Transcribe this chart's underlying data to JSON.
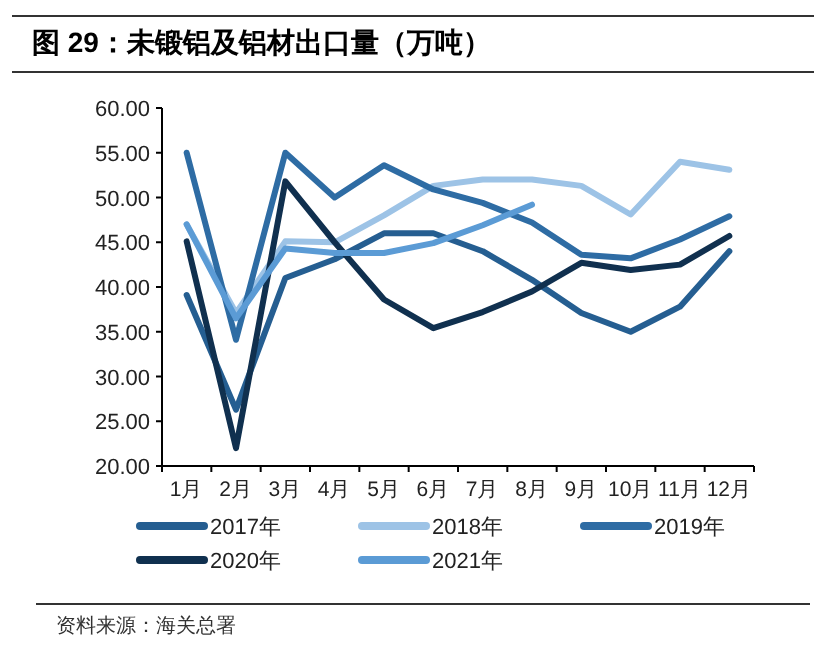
{
  "chart_data": {
    "type": "line",
    "title": "图 29：未锻铝及铝材出口量（万吨）",
    "categories": [
      "1月",
      "2月",
      "3月",
      "4月",
      "5月",
      "6月",
      "7月",
      "8月",
      "9月",
      "10月",
      "11月",
      "12月"
    ],
    "series": [
      {
        "name": "2017年",
        "color": "#255e91",
        "values": [
          39.1,
          26.3,
          41.0,
          43.1,
          46.0,
          46.0,
          44.0,
          40.8,
          37.1,
          35.0,
          37.8,
          44.0
        ]
      },
      {
        "name": "2018年",
        "color": "#9dc3e6",
        "values": [
          47.0,
          37.1,
          45.1,
          45.0,
          48.0,
          51.3,
          52.0,
          52.0,
          51.3,
          48.1,
          54.0,
          53.1
        ]
      },
      {
        "name": "2019年",
        "color": "#2e6ca4",
        "values": [
          55.0,
          34.1,
          55.0,
          50.0,
          53.6,
          50.9,
          49.4,
          47.2,
          43.6,
          43.2,
          45.3,
          47.9
        ]
      },
      {
        "name": "2020年",
        "color": "#10304f",
        "values": [
          45.1,
          22.0,
          51.8,
          45.0,
          38.6,
          35.4,
          37.2,
          39.5,
          42.7,
          41.9,
          42.5,
          45.7
        ]
      },
      {
        "name": "2021年",
        "color": "#5b9bd5",
        "values": [
          47.0,
          36.5,
          44.3,
          43.8,
          43.8,
          44.9,
          46.9,
          49.2,
          null,
          null,
          null,
          null
        ]
      }
    ],
    "ylim": [
      20,
      60
    ],
    "yticks": [
      {
        "value": 20,
        "label": "20.00"
      },
      {
        "value": 25,
        "label": "25.00"
      },
      {
        "value": 30,
        "label": "30.00"
      },
      {
        "value": 35,
        "label": "35.00"
      },
      {
        "value": 40,
        "label": "40.00"
      },
      {
        "value": 45,
        "label": "45.00"
      },
      {
        "value": 50,
        "label": "50.00"
      },
      {
        "value": 55,
        "label": "55.00"
      },
      {
        "value": 60,
        "label": "60.00"
      }
    ],
    "legend": "bottom",
    "marker": "none",
    "grid": false,
    "annotations": [
      "资料来源：海关总署"
    ]
  }
}
